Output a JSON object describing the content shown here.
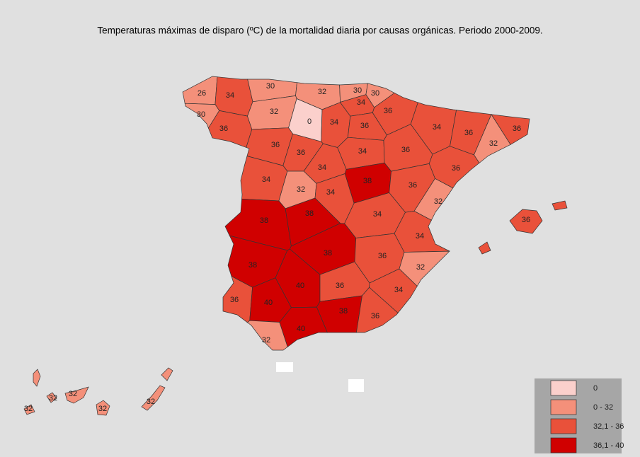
{
  "title": "Temperaturas máximas de disparo (ºC) de la mortalidad diaria por causas orgánicas. Periodo 2000-2009.",
  "legend": [
    {
      "label": "0",
      "max": 0,
      "color": "#fbd0cc"
    },
    {
      "label": "0 - 32",
      "max": 32,
      "color": "#f4907a"
    },
    {
      "label": "32,1 - 36",
      "max": 36,
      "color": "#e9513a"
    },
    {
      "label": "36,1 - 40",
      "max": 40,
      "color": "#d00000"
    }
  ],
  "provinces": [
    26,
    34,
    30,
    36,
    30,
    32,
    30,
    30,
    34,
    36,
    32,
    0,
    34,
    36,
    34,
    36,
    36,
    32,
    36,
    36,
    34,
    36,
    36,
    34,
    32,
    34,
    34,
    38,
    36,
    32,
    38,
    38,
    34,
    34,
    38,
    38,
    36,
    32,
    36,
    40,
    40,
    36,
    34,
    38,
    36,
    40,
    32,
    36,
    32,
    32,
    32,
    32,
    32
  ]
}
